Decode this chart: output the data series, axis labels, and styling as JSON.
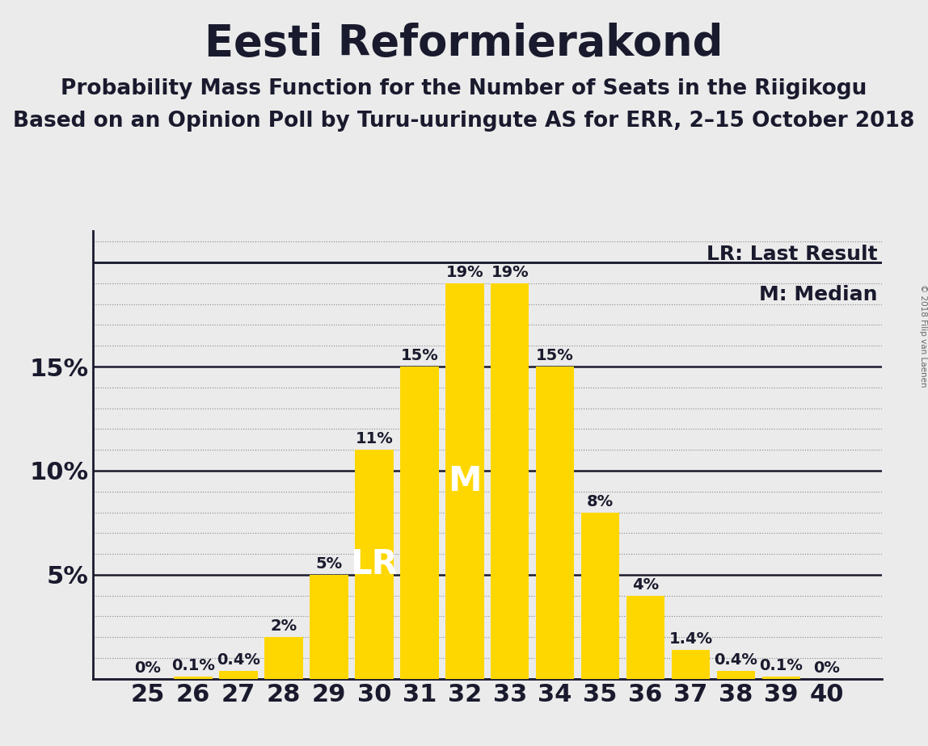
{
  "title": "Eesti Reformierakond",
  "subtitle1": "Probability Mass Function for the Number of Seats in the Riigikogu",
  "subtitle2": "Based on an Opinion Poll by Turu-uuringute AS for ERR, 2–15 October 2018",
  "watermark": "© 2018 Filip van Laenen",
  "categories": [
    25,
    26,
    27,
    28,
    29,
    30,
    31,
    32,
    33,
    34,
    35,
    36,
    37,
    38,
    39,
    40
  ],
  "values": [
    0.0,
    0.1,
    0.4,
    2.0,
    5.0,
    11.0,
    15.0,
    19.0,
    19.0,
    15.0,
    8.0,
    4.0,
    1.4,
    0.4,
    0.1,
    0.0
  ],
  "labels": [
    "0%",
    "0.1%",
    "0.4%",
    "2%",
    "5%",
    "11%",
    "15%",
    "19%",
    "19%",
    "15%",
    "8%",
    "4%",
    "1.4%",
    "0.4%",
    "0.1%",
    "0%"
  ],
  "bar_color": "#FFD700",
  "background_color": "#EBEBEB",
  "lr_seat": 30,
  "median_seat": 32,
  "lr_label": "LR",
  "median_label": "M",
  "legend_lr": "LR: Last Result",
  "legend_m": "M: Median",
  "ylim": [
    0,
    21.5
  ],
  "yticks": [
    0,
    5,
    10,
    15,
    20
  ],
  "ytick_labels": [
    "",
    "5%",
    "10%",
    "15%",
    ""
  ],
  "title_fontsize": 38,
  "subtitle_fontsize": 19,
  "axis_label_fontsize": 22,
  "bar_label_fontsize": 14,
  "legend_fontsize": 18,
  "overlay_fontsize": 30,
  "text_color": "#1a1a2e"
}
